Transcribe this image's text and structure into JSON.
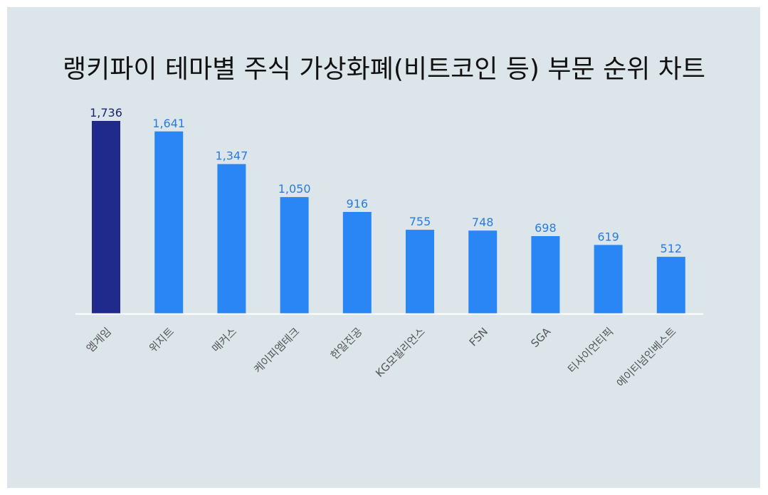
{
  "chart_data": {
    "type": "bar",
    "title": "랭키파이 테마별 주식 가상화폐(비트코인 등) 부문 순위 차트",
    "categories": [
      "엠게임",
      "위지트",
      "매커스",
      "케이피엠테크",
      "한일진공",
      "KG모빌리언스",
      "FSN",
      "SGA",
      "티사이언티픽",
      "에이티넘인베스트"
    ],
    "values": [
      1736,
      1641,
      1347,
      1050,
      916,
      755,
      748,
      698,
      619,
      512
    ],
    "value_labels": [
      "1,736",
      "1,641",
      "1,347",
      "1,050",
      "916",
      "755",
      "748",
      "698",
      "619",
      "512"
    ],
    "xlabel": "",
    "ylabel": "",
    "ylim": [
      0,
      1736
    ],
    "grid": false,
    "legend": "none",
    "colors": {
      "highlight_bar": "#1f2a8c",
      "bar": "#2a86f5",
      "highlight_label": "#1a2470",
      "label": "#2a7ae0",
      "baseline": "#ffffff",
      "background": "#dbe5ea"
    }
  }
}
